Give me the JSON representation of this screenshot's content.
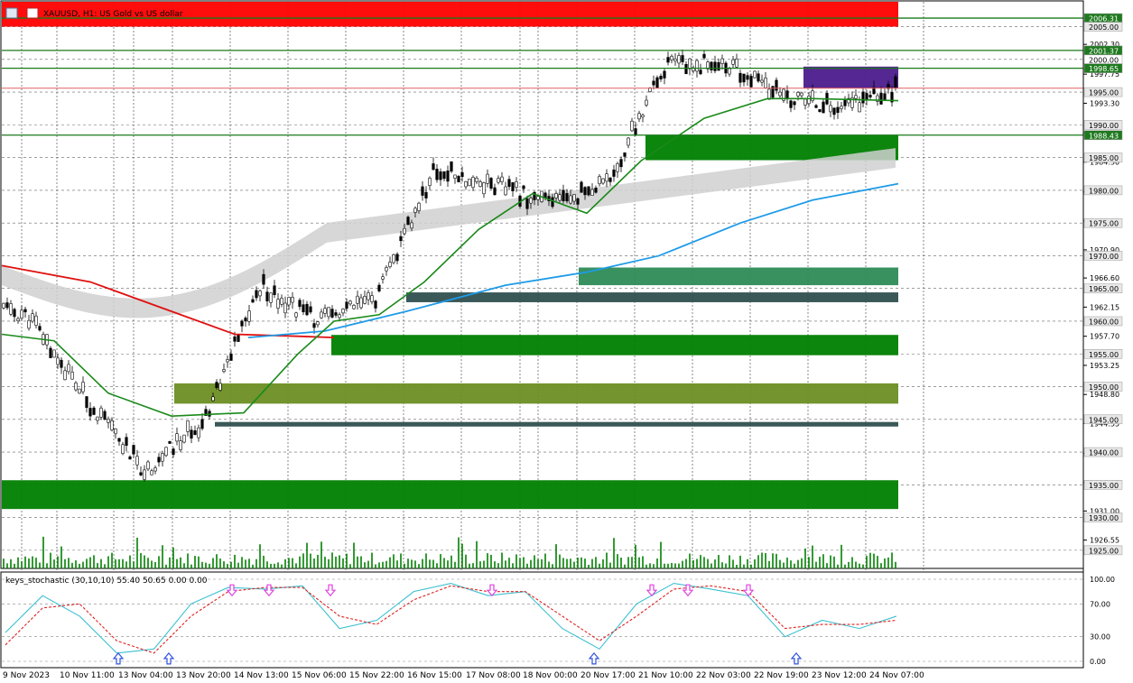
{
  "header": {
    "symbol_text": "XAUUSD, H1: US Gold vs US dollar"
  },
  "indicator": {
    "label": "keys_stochastic (30,10,10) 55.40 50.65 0.00 0.00",
    "scale": [
      "100.00",
      "70.00",
      "30.00",
      "0.00"
    ]
  },
  "price_axis": {
    "ticks": [
      "2002.30",
      "1997.75",
      "1993.30",
      "1988.75",
      "1984.30",
      "1979.75",
      "1975.30",
      "1970.90",
      "1966.60",
      "1962.15",
      "1957.70",
      "1953.25",
      "1948.80",
      "1944.35",
      "1939.80",
      "1935.35",
      "1931.00",
      "1926.55"
    ],
    "highlighted": [
      {
        "text": "2006.31",
        "bg": "#1f7a1f",
        "fg": "#ffffff"
      },
      {
        "text": "2005.00",
        "bg": "#e8e8e8",
        "fg": "#000000"
      },
      {
        "text": "2001.37",
        "bg": "#1f7a1f",
        "fg": "#ffffff"
      },
      {
        "text": "2000.00",
        "bg": "#ffffff",
        "fg": "#000000"
      },
      {
        "text": "1998.65",
        "bg": "#1f7a1f",
        "fg": "#ffffff"
      },
      {
        "text": "1995.00",
        "bg": "#e8e8e8",
        "fg": "#000000"
      },
      {
        "text": "1990.00",
        "bg": "#e8e8e8",
        "fg": "#000000"
      },
      {
        "text": "1988.43",
        "bg": "#1f7a1f",
        "fg": "#ffffff"
      },
      {
        "text": "1985.00",
        "bg": "#e8e8e8",
        "fg": "#000000"
      },
      {
        "text": "1980.00",
        "bg": "#e8e8e8",
        "fg": "#000000"
      },
      {
        "text": "1975.00",
        "bg": "#e8e8e8",
        "fg": "#000000"
      },
      {
        "text": "1970.00",
        "bg": "#e8e8e8",
        "fg": "#000000"
      },
      {
        "text": "1965.00",
        "bg": "#e8e8e8",
        "fg": "#000000"
      },
      {
        "text": "1960.00",
        "bg": "#e8e8e8",
        "fg": "#000000"
      },
      {
        "text": "1955.00",
        "bg": "#e8e8e8",
        "fg": "#000000"
      },
      {
        "text": "1950.00",
        "bg": "#e8e8e8",
        "fg": "#000000"
      },
      {
        "text": "1945.00",
        "bg": "#e8e8e8",
        "fg": "#000000"
      },
      {
        "text": "1940.00",
        "bg": "#e8e8e8",
        "fg": "#000000"
      },
      {
        "text": "1935.00",
        "bg": "#e8e8e8",
        "fg": "#000000"
      },
      {
        "text": "1930.00",
        "bg": "#e8e8e8",
        "fg": "#000000"
      },
      {
        "text": "1925.00",
        "bg": "#e8e8e8",
        "fg": "#000000"
      }
    ]
  },
  "time_axis": {
    "labels": [
      "9 Nov 2023",
      "10 Nov 11:00",
      "13 Nov 04:00",
      "13 Nov 20:00",
      "14 Nov 13:00",
      "15 Nov 06:00",
      "15 Nov 22:00",
      "16 Nov 15:00",
      "17 Nov 08:00",
      "18 Nov 00:00",
      "20 Nov 17:00",
      "21 Nov 10:00",
      "22 Nov 03:00",
      "22 Nov 19:00",
      "23 Nov 12:00",
      "24 Nov 07:00"
    ]
  },
  "colors": {
    "up_candle": "#ffffff",
    "down_candle": "#000000",
    "ma_red": "#e01010",
    "ma_green": "#1a8a1a",
    "ma_blue": "#1e9be8",
    "band_gray": "#d0d0d0",
    "zone_red": "#ff0000",
    "zone_green": "#008000",
    "zone_olive": "#6b8e23",
    "zone_slate": "#2f4f4f",
    "zone_teal": "#2e8b57",
    "zone_purple": "#4b1b8c",
    "stoch_main": "#3cc0d0",
    "stoch_signal": "#e02020",
    "arrow_up": "#3050e0",
    "arrow_down": "#e040e0"
  },
  "chart_data": [
    {
      "type": "candlestick",
      "symbol": "XAUUSD",
      "timeframe": "H1",
      "title": "XAUUSD, H1: US Gold vs US dollar",
      "ylim": [
        1922.5,
        2008.8
      ],
      "x_tick_labels": [
        "9 Nov 2023",
        "10 Nov 11:00",
        "13 Nov 04:00",
        "13 Nov 20:00",
        "14 Nov 13:00",
        "15 Nov 06:00",
        "15 Nov 22:00",
        "16 Nov 15:00",
        "17 Nov 08:00",
        "18 Nov 00:00",
        "20 Nov 17:00",
        "21 Nov 10:00",
        "22 Nov 03:00",
        "22 Nov 19:00",
        "23 Nov 12:00",
        "24 Nov 07:00"
      ],
      "key_levels": [
        2006.31,
        2001.37,
        1998.65,
        1988.43
      ],
      "approx_close_path": [
        {
          "x": "9 Nov 2023",
          "y": 1960.5
        },
        {
          "x": "10 Nov 11:00",
          "y": 1948.0
        },
        {
          "x": "13 Nov 04:00",
          "y": 1937.0
        },
        {
          "x": "13 Nov 20:00",
          "y": 1944.8
        },
        {
          "x": "14 Nov 13:00",
          "y": 1965.5
        },
        {
          "x": "15 Nov 06:00",
          "y": 1960.0
        },
        {
          "x": "15 Nov 22:00",
          "y": 1963.5
        },
        {
          "x": "16 Nov 15:00",
          "y": 1983.0
        },
        {
          "x": "17 Nov 08:00",
          "y": 1981.0
        },
        {
          "x": "18 Nov 00:00",
          "y": 1978.0
        },
        {
          "x": "20 Nov 17:00",
          "y": 1981.0
        },
        {
          "x": "21 Nov 10:00",
          "y": 1999.0
        },
        {
          "x": "22 Nov 03:00",
          "y": 1999.5
        },
        {
          "x": "22 Nov 19:00",
          "y": 1994.5
        },
        {
          "x": "23 Nov 12:00",
          "y": 1992.5
        },
        {
          "x": "24 Nov 07:00",
          "y": 1995.5
        }
      ],
      "zones": [
        {
          "from": 2008.8,
          "to": 2005.0,
          "color": "red"
        },
        {
          "from": 1998.9,
          "to": 1995.6,
          "color": "purple"
        },
        {
          "from": 1988.43,
          "to": 1984.6,
          "color": "green"
        },
        {
          "from": 1968.2,
          "to": 1965.5,
          "color": "teal"
        },
        {
          "from": 1964.4,
          "to": 1962.9,
          "color": "slate"
        },
        {
          "from": 1957.9,
          "to": 1954.8,
          "color": "green"
        },
        {
          "from": 1950.5,
          "to": 1947.4,
          "color": "olive"
        },
        {
          "from": 1944.6,
          "to": 1943.9,
          "color": "slate"
        },
        {
          "from": 1935.7,
          "to": 1931.3,
          "color": "green"
        }
      ]
    },
    {
      "type": "line",
      "title": "keys_stochastic (30,10,10)",
      "ylim": [
        0,
        100
      ],
      "x_tick_labels": [
        "9 Nov 2023",
        "10 Nov 11:00",
        "13 Nov 04:00",
        "13 Nov 20:00",
        "14 Nov 13:00",
        "15 Nov 06:00",
        "15 Nov 22:00",
        "16 Nov 15:00",
        "17 Nov 08:00",
        "18 Nov 00:00",
        "20 Nov 17:00",
        "21 Nov 10:00",
        "22 Nov 03:00",
        "22 Nov 19:00",
        "23 Nov 12:00",
        "24 Nov 07:00"
      ],
      "series": [
        {
          "name": "main",
          "values": [
            35,
            80,
            55,
            10,
            15,
            70,
            90,
            88,
            92,
            40,
            50,
            85,
            95,
            80,
            85,
            40,
            15,
            70,
            95,
            88,
            80,
            30,
            50,
            40,
            55
          ],
          "last": 55.4
        },
        {
          "name": "signal",
          "values": [
            20,
            65,
            70,
            25,
            10,
            55,
            85,
            90,
            90,
            55,
            45,
            75,
            92,
            85,
            85,
            55,
            25,
            55,
            88,
            92,
            85,
            40,
            45,
            45,
            50
          ],
          "last": 50.65
        }
      ],
      "signals_up": [
        "13 Nov 04:00",
        "13 Nov 20:00",
        "20 Nov 17:00",
        "22 Nov 19:00"
      ],
      "signals_down": [
        "14 Nov 13:00",
        "15 Nov 06:00",
        "17 Nov 08:00",
        "21 Nov 10:00",
        "22 Nov 03:00"
      ]
    }
  ]
}
